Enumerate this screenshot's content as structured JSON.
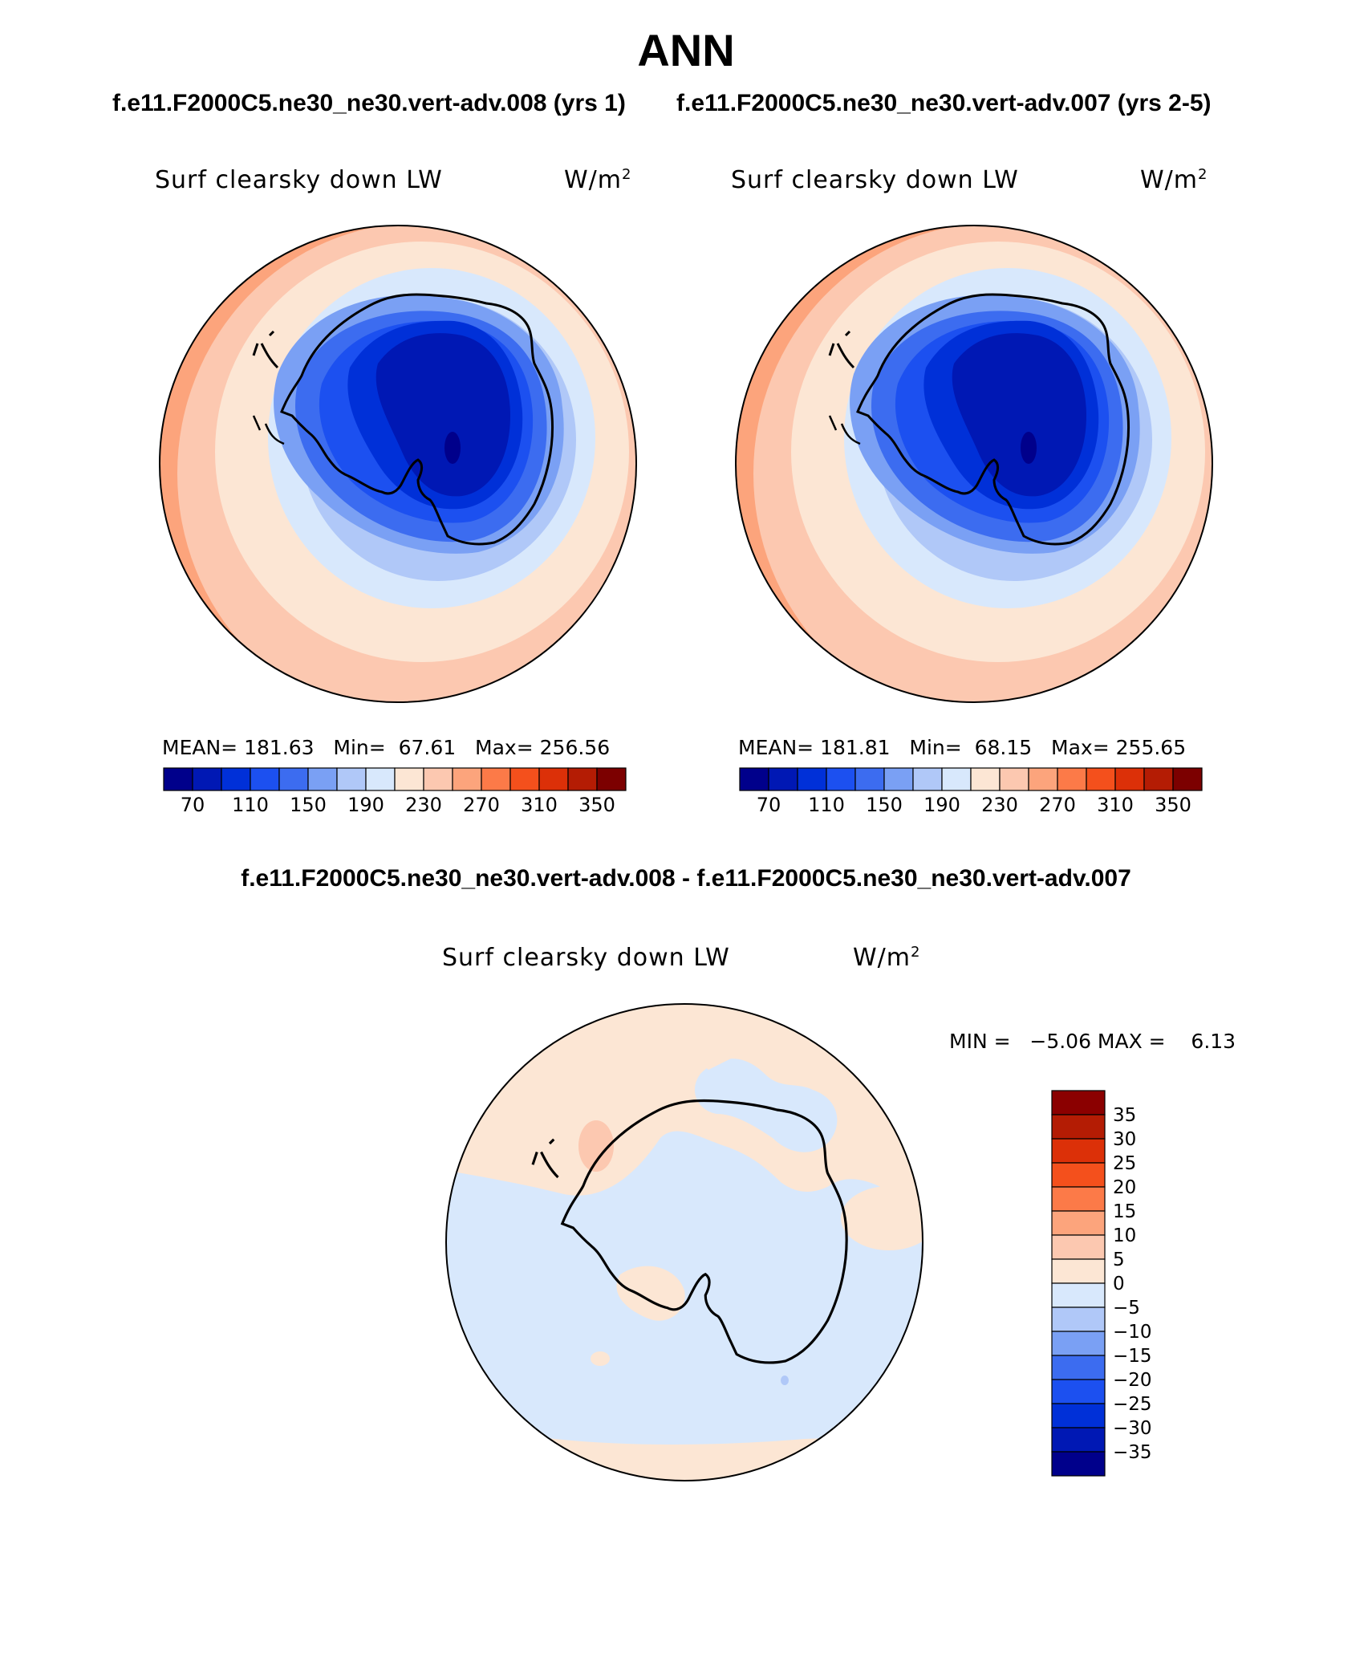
{
  "title": "ANN",
  "case_titles": {
    "left": "f.e11.F2000C5.ne30_ne30.vert-adv.008 (yrs 1)",
    "right": "f.e11.F2000C5.ne30_ne30.vert-adv.007 (yrs 2-5)"
  },
  "panels": [
    {
      "variable": "Surf clearsky down LW",
      "units_base": "W/m",
      "units_exp": "2",
      "stats": {
        "mean_label": "MEAN=",
        "mean": "181.63",
        "min_label": "Min=",
        "min": "67.61",
        "max_label": "Max=",
        "max": "256.56"
      }
    },
    {
      "variable": "Surf clearsky down LW",
      "units_base": "W/m",
      "units_exp": "2",
      "stats": {
        "mean_label": "MEAN=",
        "mean": "181.81",
        "min_label": "Min=",
        "min": "68.15",
        "max_label": "Max=",
        "max": "255.65"
      }
    }
  ],
  "difference": {
    "title": "f.e11.F2000C5.ne30_ne30.vert-adv.008 - f.e11.F2000C5.ne30_ne30.vert-adv.007",
    "variable": "Surf clearsky down LW",
    "units_base": "W/m",
    "units_exp": "2",
    "minmax": "MIN =   −5.06 MAX =    6.13"
  },
  "colorbar_top": {
    "colors": [
      "#00008b",
      "#0018b4",
      "#0030d8",
      "#1c50f0",
      "#3c6cf0",
      "#7aa0f4",
      "#b0c8f8",
      "#d8e8fc",
      "#fce6d4",
      "#fcc8b0",
      "#fca47c",
      "#fc7a48",
      "#f4501c",
      "#dc3008",
      "#b41c04",
      "#7c0000"
    ],
    "labels": [
      "70",
      "110",
      "150",
      "190",
      "230",
      "270",
      "310",
      "350"
    ]
  },
  "colorbar_diff": {
    "colors": [
      "#8b0000",
      "#b41c04",
      "#dc3008",
      "#f4501c",
      "#fc7a48",
      "#fca47c",
      "#fcc8b0",
      "#fce6d4",
      "#d8e8fc",
      "#b0c8f8",
      "#7aa0f4",
      "#3c6cf0",
      "#1c50f0",
      "#0030d8",
      "#0018b4",
      "#00008b"
    ],
    "labels": [
      "35",
      "30",
      "25",
      "20",
      "15",
      "10",
      "5",
      "0",
      "−5",
      "−10",
      "−15",
      "−20",
      "−25",
      "−30",
      "−35"
    ]
  }
}
